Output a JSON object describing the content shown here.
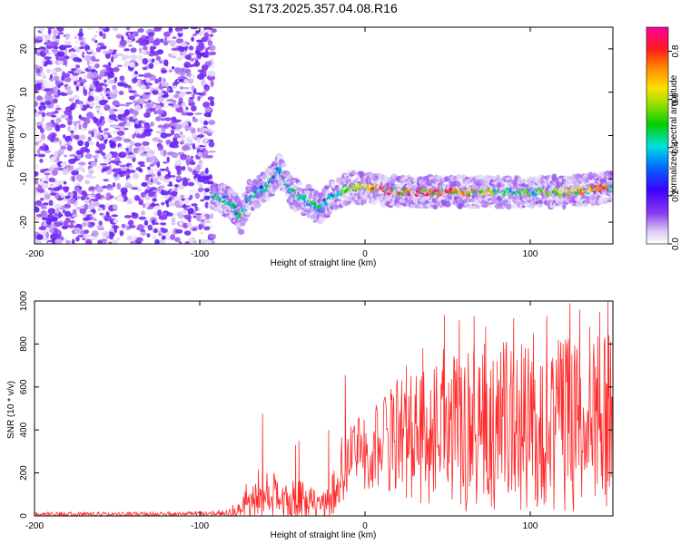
{
  "title": "S173.2025.357.04.08.R16",
  "colors": {
    "snr_line": "#ff2a2a",
    "axis": "#000000"
  },
  "chart_data": [
    {
      "type": "heatmap",
      "xlabel": "Height of straight line (km)",
      "ylabel": "Frequency (Hz)",
      "xlim": [
        -200,
        150
      ],
      "ylim": [
        -25,
        25
      ],
      "xticks": [
        -200,
        -100,
        0,
        100
      ],
      "xtick_labels": [
        "-200",
        "-100",
        "0",
        "100"
      ],
      "yticks": [
        -20,
        -10,
        0,
        10,
        20
      ],
      "ytick_labels": [
        "-20",
        "-10",
        "0",
        "10",
        "20"
      ],
      "colorbar": {
        "label": "Normalized spectral amplitude",
        "range": [
          0.0,
          0.9
        ],
        "ticks": [
          0.0,
          0.2,
          0.4,
          0.6,
          0.8
        ],
        "tick_labels": [
          "0.0",
          "0.2",
          "0.4",
          "0.6",
          "0.8"
        ],
        "colormap": "rainbow"
      },
      "features": {
        "noise_region_x": [
          -200,
          -92
        ],
        "noise_amplitude": [
          0.05,
          0.15
        ],
        "signal_band": {
          "x_start": -92,
          "x_end": 150,
          "center_freq_hz": [
            [
              -90,
              -14
            ],
            [
              -80,
              -16
            ],
            [
              -75,
              -19
            ],
            [
              -70,
              -14
            ],
            [
              -60,
              -12
            ],
            [
              -52,
              -8
            ],
            [
              -45,
              -13
            ],
            [
              -35,
              -15
            ],
            [
              -28,
              -17
            ],
            [
              -20,
              -14
            ],
            [
              -10,
              -12
            ],
            [
              0,
              -12
            ],
            [
              20,
              -13
            ],
            [
              40,
              -13
            ],
            [
              60,
              -13
            ],
            [
              80,
              -13
            ],
            [
              100,
              -13
            ],
            [
              120,
              -13
            ],
            [
              150,
              -12
            ]
          ],
          "peak_amplitude_segments": [
            [
              -20,
              0.45
            ],
            [
              20,
              0.9
            ],
            [
              28,
              0.85
            ],
            [
              55,
              0.8
            ],
            [
              90,
              0.5
            ],
            [
              125,
              0.7
            ],
            [
              147,
              0.8
            ]
          ]
        }
      }
    },
    {
      "type": "line",
      "xlabel": "Height of straight line (km)",
      "ylabel": "SNR (10 * v/v)",
      "xlim": [
        -200,
        150
      ],
      "ylim": [
        0,
        1000
      ],
      "xticks": [
        -200,
        -100,
        0,
        100
      ],
      "xtick_labels": [
        "-200",
        "-100",
        "0",
        "100"
      ],
      "yticks": [
        0,
        200,
        400,
        600,
        800,
        1000
      ],
      "ytick_labels": [
        "0",
        "200",
        "400",
        "600",
        "800",
        "1000"
      ],
      "series": [
        {
          "name": "SNR",
          "envelope": {
            "x": [
              -200,
              -150,
              -100,
              -85,
              -78,
              -70,
              -62,
              -55,
              -50,
              -42,
              -35,
              -28,
              -22,
              -18,
              -14,
              -10,
              -5,
              0,
              10,
              20,
              30,
              40,
              50,
              60,
              80,
              100,
              120,
              140,
              150
            ],
            "base": [
              8,
              8,
              10,
              12,
              20,
              80,
              110,
              90,
              60,
              80,
              60,
              40,
              60,
              120,
              220,
              260,
              280,
              300,
              330,
              360,
              380,
              400,
              420,
              420,
              420,
              420,
              420,
              420,
              420
            ],
            "amp": [
              10,
              10,
              10,
              15,
              40,
              110,
              130,
              110,
              90,
              110,
              100,
              70,
              80,
              130,
              170,
              170,
              170,
              180,
              230,
              280,
              320,
              350,
              380,
              400,
              400,
              400,
              400,
              420,
              430
            ]
          },
          "spikes": [
            [
              -62,
              475
            ],
            [
              -42,
              330
            ],
            [
              -40,
              350
            ],
            [
              -12,
              655
            ],
            [
              -22,
              400
            ],
            [
              25,
              700
            ],
            [
              35,
              780
            ],
            [
              48,
              935
            ],
            [
              57,
              910
            ],
            [
              66,
              930
            ],
            [
              73,
              880
            ],
            [
              80,
              720
            ],
            [
              90,
              920
            ],
            [
              97,
              780
            ],
            [
              102,
              850
            ],
            [
              110,
              930
            ],
            [
              117,
              820
            ],
            [
              124,
              990
            ],
            [
              130,
              960
            ],
            [
              136,
              880
            ],
            [
              142,
              950
            ],
            [
              147,
              1000
            ]
          ]
        }
      ]
    }
  ]
}
